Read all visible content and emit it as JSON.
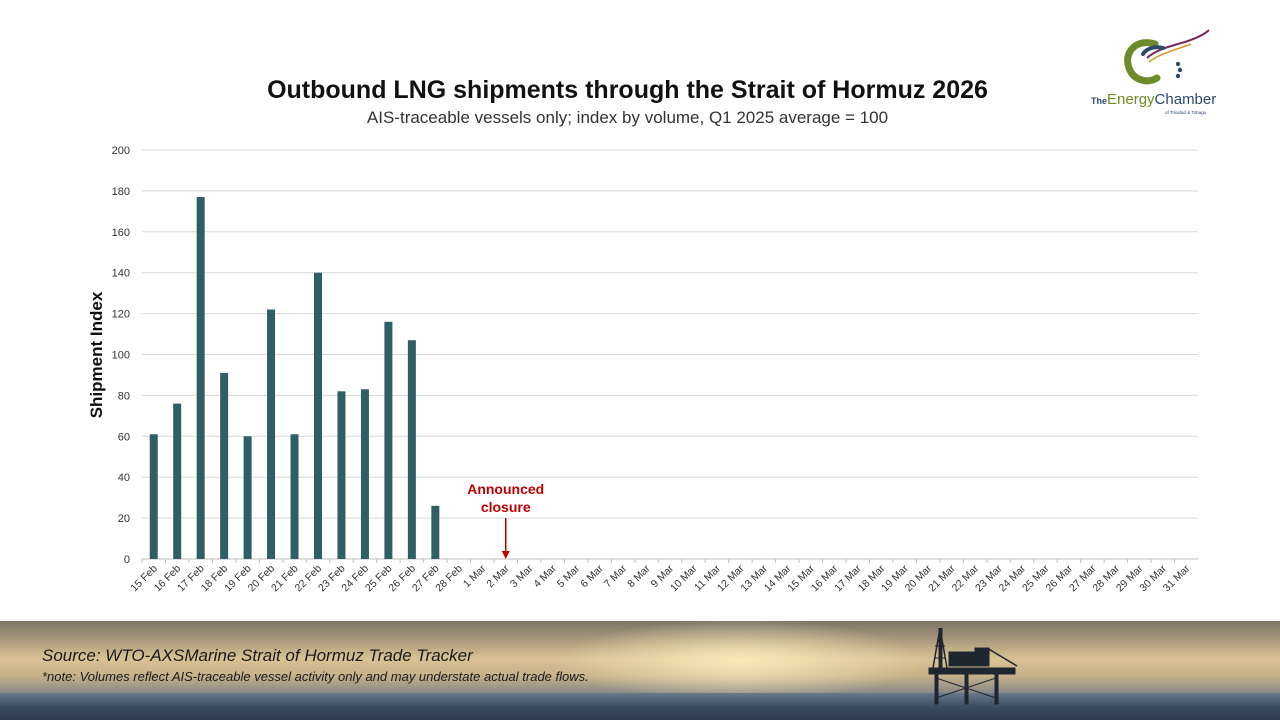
{
  "header": {
    "title": "Outbound LNG shipments through the Strait of Hormuz 2026",
    "subtitle": "AIS-traceable vessels only; index by volume, Q1 2025 average = 100"
  },
  "logo": {
    "line1": "The Energy Chamber",
    "line2": "of Trinidad & Tobago",
    "colors": {
      "green": "#6d8b2a",
      "navy": "#2d4a6b",
      "orange": "#e0901e",
      "purple": "#7a2a5a"
    }
  },
  "chart_data": {
    "type": "bar",
    "title": "Outbound LNG shipments through the Strait of Hormuz 2026",
    "subtitle": "AIS-traceable vessels only; index by volume, Q1 2025 average = 100",
    "xlabel": "",
    "ylabel": "Shipment Index",
    "ylim": [
      0,
      200
    ],
    "yticks": [
      0,
      20,
      40,
      60,
      80,
      100,
      120,
      140,
      160,
      180,
      200
    ],
    "grid": true,
    "categories": [
      "15 Feb",
      "16 Feb",
      "17 Feb",
      "18 Feb",
      "19 Feb",
      "20 Feb",
      "21 Feb",
      "22 Feb",
      "23 Feb",
      "24 Feb",
      "25 Feb",
      "26 Feb",
      "27 Feb",
      "28 Feb",
      "1 Mar",
      "2 Mar",
      "3 Mar",
      "4 Mar",
      "5 Mar",
      "6 Mar",
      "7 Mar",
      "8 Mar",
      "9 Mar",
      "10 Mar",
      "11 Mar",
      "12 Mar",
      "13 Mar",
      "14 Mar",
      "15 Mar",
      "16 Mar",
      "17 Mar",
      "18 Mar",
      "19 Mar",
      "20 Mar",
      "21 Mar",
      "22 Mar",
      "23 Mar",
      "24 Mar",
      "25 Mar",
      "26 Mar",
      "27 Mar",
      "28 Mar",
      "29 Mar",
      "30 Mar",
      "31 Mar"
    ],
    "values": [
      61,
      76,
      177,
      91,
      60,
      122,
      61,
      140,
      82,
      83,
      116,
      107,
      26,
      null,
      null,
      null,
      null,
      null,
      null,
      null,
      null,
      null,
      null,
      null,
      null,
      null,
      null,
      null,
      null,
      null,
      null,
      null,
      null,
      null,
      null,
      null,
      null,
      null,
      null,
      null,
      null,
      null,
      null,
      null,
      null
    ],
    "bar_color": "#2f5f66",
    "annotation": {
      "text_line1": "Announced",
      "text_line2": "closure",
      "category": "2 Mar",
      "color": "#c00000"
    }
  },
  "footer": {
    "source": "Source: WTO-AXSMarine Strait of Hormuz Trade Tracker",
    "note": "*note: Volumes reflect AIS-traceable vessel activity only and may understate actual trade flows."
  }
}
